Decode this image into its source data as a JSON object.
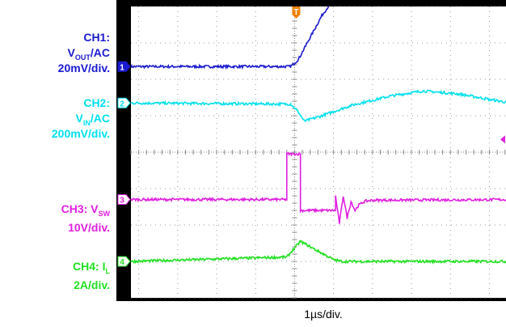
{
  "chart_data": {
    "type": "line",
    "title": "",
    "xlabel": "1µs/div.",
    "grid": true,
    "divisions": {
      "x": 10,
      "y": 8
    },
    "x_range_div": [
      -4.2,
      5.8
    ],
    "trigger_marker": "T",
    "series": [
      {
        "name": "CH1",
        "unit_label": "20mV/div.",
        "color": "#1a1ad0",
        "marker": "1",
        "x": [
          -4.2,
          -0.1,
          0.1,
          0.3,
          0.5,
          0.7,
          0.9,
          1.1,
          1.4,
          2.0,
          3.0,
          4.0,
          5.8
        ],
        "y": [
          2.35,
          2.35,
          2.55,
          2.95,
          3.35,
          3.75,
          4.05,
          4.2,
          4.25,
          4.22,
          4.2,
          4.18,
          4.17
        ]
      },
      {
        "name": "CH2",
        "unit_label": "200mV/div.",
        "color": "#00e0ec",
        "marker": "2",
        "x": [
          -4.2,
          -0.1,
          0.1,
          0.25,
          0.7,
          1.5,
          2.5,
          3.3,
          4.2,
          5.0,
          5.8
        ],
        "y": [
          1.35,
          1.32,
          1.1,
          0.85,
          1.0,
          1.3,
          1.55,
          1.68,
          1.6,
          1.45,
          1.3
        ]
      },
      {
        "name": "CH3",
        "unit_label": "10V/div.",
        "color": "#e020e0",
        "marker": "3",
        "x": [
          -4.2,
          -0.2,
          -0.2,
          0.15,
          0.15,
          1.05,
          1.05,
          1.15,
          1.25,
          1.35,
          1.45,
          1.55,
          1.65,
          1.8,
          2.0,
          5.8
        ],
        "y": [
          -1.3,
          -1.3,
          -0.05,
          -0.05,
          -1.6,
          -1.6,
          -1.2,
          -1.95,
          -1.2,
          -1.8,
          -1.35,
          -1.6,
          -1.45,
          -1.35,
          -1.32,
          -1.3
        ]
      },
      {
        "name": "CH4",
        "unit_label": "2A/div.",
        "color": "#22e022",
        "marker": "4",
        "x": [
          -4.2,
          -0.2,
          0.15,
          1.0,
          1.2,
          5.8
        ],
        "y": [
          -3.0,
          -2.88,
          -2.45,
          -2.95,
          -3.0,
          -3.0
        ]
      }
    ]
  },
  "labels": {
    "ch1_a": "CH1:",
    "ch1_b_main": "V",
    "ch1_b_sub": "OUT",
    "ch1_b_rest": "/AC",
    "ch1_c": "20mV/div.",
    "ch2_a": "CH2:",
    "ch2_b_main": "V",
    "ch2_b_sub": "IN",
    "ch2_b_rest": "/AC",
    "ch2_c": "200mV/div.",
    "ch3_a_main": "CH3: V",
    "ch3_a_sub": "SW",
    "ch3_b": "10V/div.",
    "ch4_a_main": "CH4: I",
    "ch4_a_sub": "L",
    "ch4_b": "2A/div."
  }
}
